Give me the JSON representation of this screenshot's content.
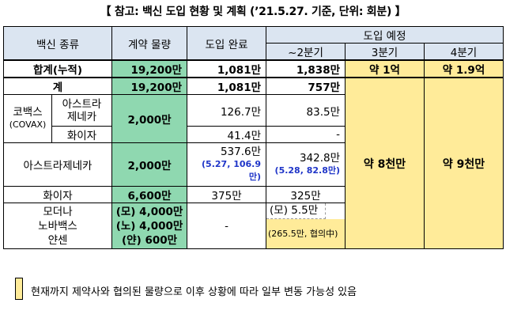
{
  "title": "【 참고: 백신 도입 현황 및 계획 (’21.5.27. 기준, 단위: 회분) 】",
  "headers": {
    "vaccine_type": "백신 종류",
    "contract": "계약 물량",
    "delivered": "도입 완료",
    "planned": "도입 예정",
    "q2": "~2분기",
    "q3": "3분기",
    "q4": "4분기"
  },
  "rows": {
    "total_cum": {
      "label": "합계(누적)",
      "contract": "19,200만",
      "delivered": "1,081만",
      "q2": "1,838만",
      "q3": "약 1억",
      "q4": "약 1.9억"
    },
    "total": {
      "label": "계",
      "contract": "19,200만",
      "delivered": "1,081만",
      "q2": "757만"
    },
    "covax": {
      "label": "코백스",
      "label_sub": "(COVAX)",
      "contract": "2,000만",
      "az": {
        "label_1": "아스트라",
        "label_2": "제네카",
        "delivered": "126.7만",
        "q2": "83.5만"
      },
      "pfizer": {
        "label": "화이자",
        "delivered": "41.4만",
        "q2": "-"
      }
    },
    "az": {
      "label": "아스트라제네카",
      "contract": "2,000만",
      "delivered": "537.6만",
      "delivered_note_1": "(5.27, 106.9",
      "delivered_note_2": "만)",
      "q2": "342.8만",
      "q2_note": "(5.28, 82.8만)"
    },
    "pfizer": {
      "label": "화이자",
      "contract": "6,600만",
      "delivered": "375만",
      "q2": "325만"
    },
    "others": {
      "label_1": "모더나",
      "label_2": "노바백스",
      "label_3": "얀센",
      "contract_1": "(모) 4,000만",
      "contract_2": "(노) 4,000만",
      "contract_3": "(얀)  600만",
      "delivered": "-",
      "q2_1": "(모) 5.5만",
      "q2_2": "(265.5만, 협의中)"
    },
    "q3_future": "약 8천만",
    "q4_future": "약 9천만"
  },
  "legend": "현재까지 제약사와 협의된 물량으로 이후 상황에 따라 일부 변동 가능성 있음",
  "colors": {
    "header": "#dbe5f1",
    "contract": "#8fd8b0",
    "planned": "#ffeb99",
    "note": "#1f35c8"
  }
}
